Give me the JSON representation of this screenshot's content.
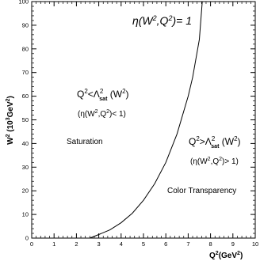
{
  "chart_data": {
    "type": "line",
    "xlabel": "Q²(GeV²)",
    "ylabel": "W² (10³GeV²)",
    "xlim": [
      0,
      10
    ],
    "ylim": [
      0,
      100
    ],
    "xticks": [
      0,
      1,
      2,
      3,
      4,
      5,
      6,
      7,
      8,
      9,
      10
    ],
    "yticks": [
      0,
      10,
      20,
      30,
      40,
      50,
      60,
      70,
      80,
      90,
      100
    ],
    "grid": false,
    "series": [
      {
        "name": "η(W²,Q²)= 1",
        "x": [
          2.6,
          3.0,
          3.5,
          4.0,
          4.5,
          5.0,
          5.5,
          6.0,
          6.5,
          7.0,
          7.2,
          7.5,
          7.63
        ],
        "y": [
          0.0,
          1.5,
          3.5,
          6.5,
          10.5,
          16.0,
          23.0,
          32.0,
          44.0,
          60.0,
          68.0,
          84.0,
          100.0
        ]
      }
    ],
    "annotations": {
      "curve_label": {
        "pre": "η(W",
        "sup1": "2",
        "mid": ",Q",
        "sup2": "2",
        "post": ")= 1"
      },
      "left_condition": {
        "q": "Q",
        "q_sup": "2",
        "rel": "<Λ",
        "lam_sup": "2",
        "lam_sub": "sat",
        "post": " (W",
        "w_sup": "2",
        "close": ")"
      },
      "left_eta": {
        "pre": "(η(W",
        "sup1": "2",
        "mid": ",Q",
        "sup2": "2",
        "post": ")< 1)"
      },
      "left_region": "Saturation",
      "right_condition": {
        "q": "Q",
        "q_sup": "2",
        "rel": ">Λ",
        "lam_sup": "2",
        "lam_sub": "sat",
        "post": " (W",
        "w_sup": "2",
        "close": ")"
      },
      "right_eta": {
        "pre": "(η(W",
        "sup1": "2",
        "mid": ",Q",
        "sup2": "2",
        "post": ")> 1)"
      },
      "right_region": "Color Transparency"
    },
    "axis_text": {
      "y": {
        "w": "W",
        "w_sup": "2",
        "mid": " (10",
        "ten_sup": "3",
        "unit": "GeV",
        "unit_sup": "2",
        "close": ")"
      },
      "x": {
        "q": "Q",
        "q_sup": "2",
        "mid": "(GeV",
        "unit_sup": "2",
        "close": ")"
      }
    }
  }
}
